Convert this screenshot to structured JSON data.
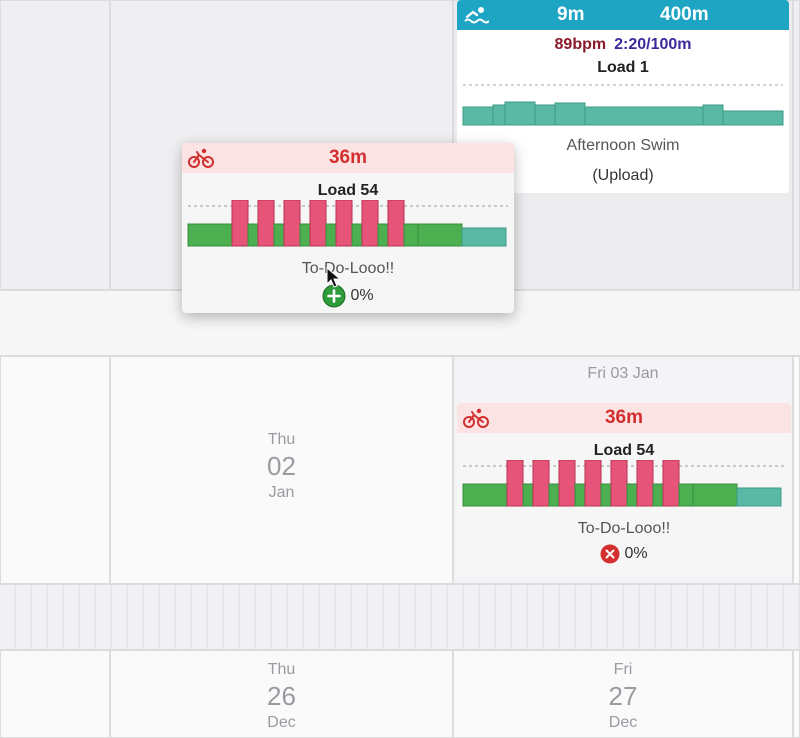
{
  "colors": {
    "bike_header_bg": "#fbe3e3",
    "bike_header_text": "#d32f2f",
    "swim_header_bg": "#1ea5c3",
    "swim_header_text": "#ffffff",
    "work_block": "#e6547a",
    "easy_block": "#4caf50",
    "cool_block": "#5ab9a4",
    "hr_text": "#8b1a2b",
    "pace_text": "#3a2a9c",
    "add_badge": "#2e9c3b",
    "fail_badge": "#d32f2f"
  },
  "calendar": {
    "row2": {
      "thu": {
        "dow": "Thu",
        "day": "02",
        "month": "Jan"
      },
      "fri_date_line": "Fri 03 Jan"
    },
    "row3": {
      "thu": {
        "dow": "Thu",
        "day": "26",
        "month": "Dec"
      },
      "fri": {
        "dow": "Fri",
        "day": "27",
        "month": "Dec"
      }
    }
  },
  "swim_card": {
    "icon": "swimmer-icon",
    "duration": "9m",
    "distance": "400m",
    "heart_rate": "89bpm",
    "pace": "2:20/100m",
    "load": "Load 1",
    "title": "Afternoon Swim",
    "source": "(Upload)"
  },
  "dragged_card": {
    "icon": "bike-icon",
    "duration": "36m",
    "load": "Load 54",
    "title": "To-Do-Looo!!",
    "compliance": "0%",
    "status_icon": "plus-icon"
  },
  "fri_card": {
    "icon": "bike-icon",
    "duration": "36m",
    "load": "Load 54",
    "title": "To-Do-Looo!!",
    "compliance": "0%",
    "status_icon": "close-icon"
  }
}
